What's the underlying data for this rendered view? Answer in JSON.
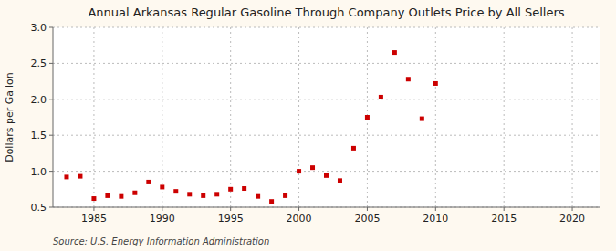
{
  "chart_data": {
    "type": "scatter",
    "title": "Annual Arkansas Regular Gasoline Through Company Outlets Price by All Sellers",
    "y_label": "Dollars per Gallon",
    "source": "Source: U.S. Energy Information Administration",
    "x": [
      1983,
      1984,
      1985,
      1986,
      1987,
      1988,
      1989,
      1990,
      1991,
      1992,
      1993,
      1994,
      1995,
      1996,
      1997,
      1998,
      1999,
      2000,
      2001,
      2002,
      2003,
      2004,
      2005,
      2006,
      2007,
      2008,
      2009,
      2010
    ],
    "values": [
      0.92,
      0.93,
      0.62,
      0.66,
      0.65,
      0.7,
      0.85,
      0.78,
      0.72,
      0.68,
      0.66,
      0.68,
      0.75,
      0.76,
      0.65,
      0.58,
      0.66,
      1.0,
      1.05,
      0.94,
      0.87,
      1.32,
      1.75,
      2.03,
      2.65,
      2.28,
      1.73,
      2.22
    ],
    "color": "#cc0000",
    "marker": "square",
    "xlim": [
      1982,
      2022
    ],
    "ylim": [
      0.5,
      3.0
    ],
    "xticks": [
      1985,
      1990,
      1995,
      2000,
      2005,
      2010,
      2015,
      2020
    ],
    "yticks": [
      0.5,
      {
        "value": 1.0,
        "label": "1.0"
      },
      1.5,
      {
        "value": 2.0,
        "label": "2.0"
      },
      2.5,
      {
        "value": 3.0,
        "label": "3.0"
      }
    ],
    "grid": true
  }
}
